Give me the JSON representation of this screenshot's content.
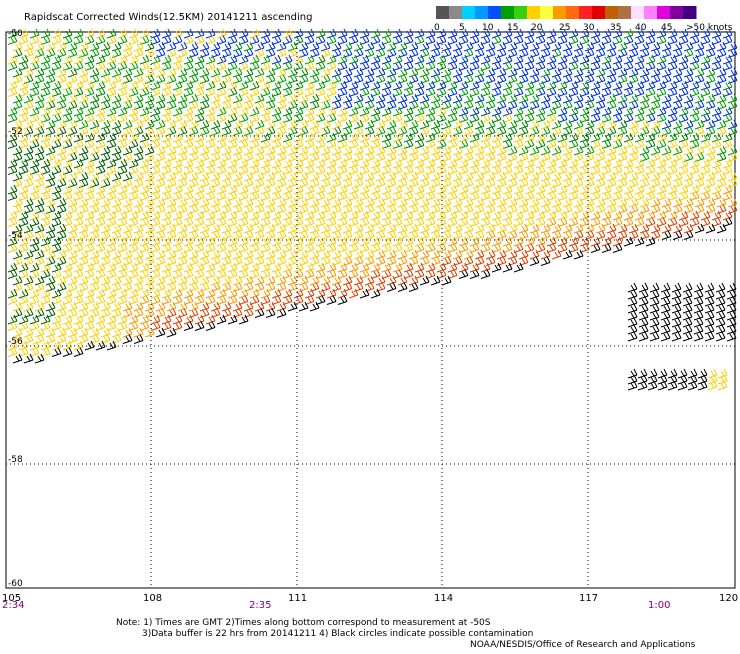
{
  "title": "Rapidscat Corrected Winds(12.5KM) 20141211 ascending",
  "legend": {
    "labels": [
      "0",
      "5",
      "10",
      "15",
      "20",
      "25",
      "30",
      "35",
      "40",
      "45",
      ">50 knots"
    ],
    "colors": [
      "#555555",
      "#8a8a8a",
      "#00cfff",
      "#0099ff",
      "#0050ff",
      "#00a000",
      "#36d010",
      "#ffd000",
      "#ffff40",
      "#ff9a00",
      "#ff6a10",
      "#ff2020",
      "#e00000",
      "#c06000",
      "#b07040",
      "#ffe0ff",
      "#ff80ff",
      "#e000e0",
      "#8000a0",
      "#400080"
    ]
  },
  "map": {
    "lat_labels": [
      "-50",
      "-52",
      "-54",
      "-56",
      "-58",
      "-60"
    ],
    "lon_labels": [
      "105",
      "108",
      "111",
      "114",
      "117",
      "120"
    ],
    "time_labels": [
      "2:34",
      "2:35",
      "1:00"
    ]
  },
  "notes": {
    "line1": "Note: 1) Times are GMT 2)Times along bottom correspond to measurement at -50S",
    "line2": "3)Data buffer is 22 hrs from 20141211 4) Black circles indicate possible contamination",
    "credit": "NOAA/NESDIS/Office of Research and Applications"
  },
  "colors": {
    "calm": "#000000",
    "light": "#00a000",
    "moderate": "#ffd000",
    "fresh": "#ff9a00",
    "strong": "#e04000",
    "gale": "#0030e0"
  }
}
